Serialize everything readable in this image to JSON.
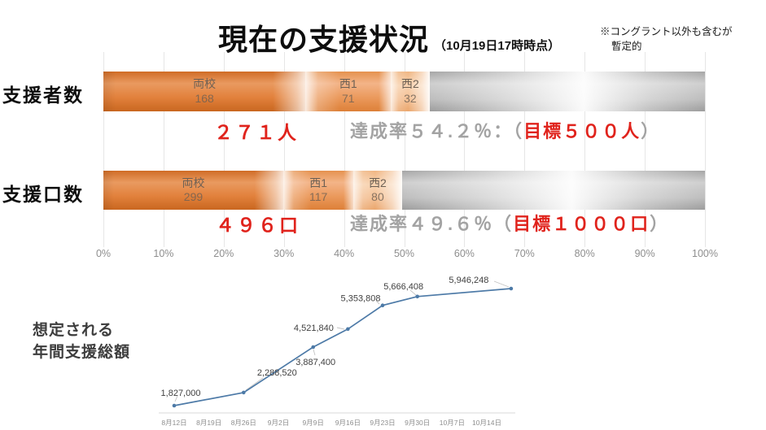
{
  "slide": {
    "title": "現在の支援状況",
    "title_suffix": "（10月19日17時時点）",
    "note_line1": "※コングラント以外も含むが",
    "note_line2": "暫定的"
  },
  "colors": {
    "accent_orange": "#de7630",
    "remainder_gray": "#bdbdbd",
    "highlight_red": "#e0231c",
    "muted_gray_text": "#a3a3a3",
    "line_blue": "#4d7aa7"
  },
  "axis": {
    "ticks": [
      "0%",
      "10%",
      "20%",
      "30%",
      "40%",
      "50%",
      "60%",
      "70%",
      "80%",
      "90%",
      "100%"
    ]
  },
  "chart_data": [
    {
      "type": "bar",
      "row_label": "支援者数",
      "target": 500,
      "total": 271,
      "total_label": "２７１人",
      "achievement_pre": "達成率５４.２％：（",
      "achievement_goal": "目標５００人",
      "achievement_post": "）",
      "segments": [
        {
          "name": "両校",
          "value": 168
        },
        {
          "name": "西1",
          "value": 71
        },
        {
          "name": "西2",
          "value": 32
        }
      ]
    },
    {
      "type": "bar",
      "row_label": "支援口数",
      "target": 1000,
      "total": 496,
      "total_label": "４９６口",
      "achievement_pre": "達成率４９.６％（",
      "achievement_goal": "目標１０００口",
      "achievement_post": "）",
      "segments": [
        {
          "name": "両校",
          "value": 299
        },
        {
          "name": "西1",
          "value": 117
        },
        {
          "name": "西2",
          "value": 80
        }
      ]
    },
    {
      "type": "line",
      "label_line1": "想定される",
      "label_line2": "年間支援総額",
      "x_ticks": [
        "8月12日",
        "8月19日",
        "8月26日",
        "9月2日",
        "9月9日",
        "9月16日",
        "9月23日",
        "9月30日",
        "10月7日",
        "10月14日"
      ],
      "points": [
        {
          "x_tick": 0,
          "value": 1827000,
          "label": "1,827,000"
        },
        {
          "x_tick": 2,
          "value": 2288520,
          "label": "2,288,520"
        },
        {
          "x_tick": 4,
          "value": 3887400,
          "label": "3,887,400"
        },
        {
          "x_tick": 5,
          "value": 4521840,
          "label": "4,521,840"
        },
        {
          "x_tick": 6,
          "value": 5353808,
          "label": "5,353,808"
        },
        {
          "x_tick": 7,
          "value": 5666408,
          "label": "5,666,408"
        },
        {
          "x_tick": 9.7,
          "value": 5946248,
          "label": "5,946,248"
        }
      ]
    }
  ]
}
